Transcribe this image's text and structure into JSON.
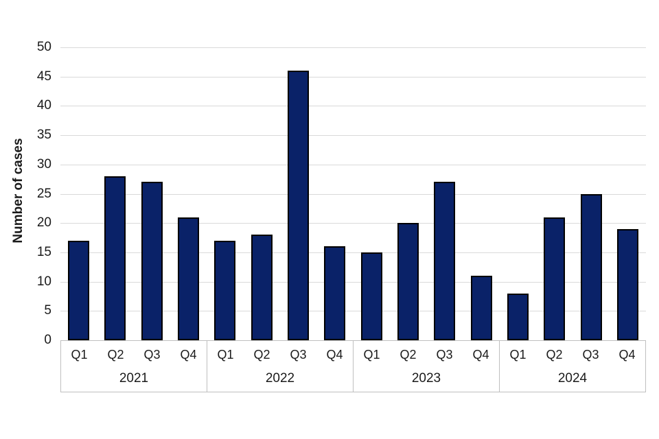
{
  "chart_data": {
    "type": "bar",
    "title": "",
    "ylabel": "Number of cases",
    "xlabel": "",
    "ylim": [
      0,
      50
    ],
    "ytick_step": 5,
    "grid": true,
    "legend": false,
    "colors": {
      "bar_fill": "#0a2268",
      "bar_border": "#000000",
      "gridline": "#d9d9d9",
      "axis_box": "#bfbfbf",
      "text": "#1a1a1a"
    },
    "categories": [
      "Q1",
      "Q2",
      "Q3",
      "Q4"
    ],
    "groups": [
      {
        "year": "2021",
        "values": [
          17,
          28,
          27,
          21
        ]
      },
      {
        "year": "2022",
        "values": [
          17,
          18,
          46,
          16
        ]
      },
      {
        "year": "2023",
        "values": [
          15,
          20,
          27,
          11
        ]
      },
      {
        "year": "2024",
        "values": [
          8,
          21,
          25,
          19
        ]
      }
    ]
  }
}
